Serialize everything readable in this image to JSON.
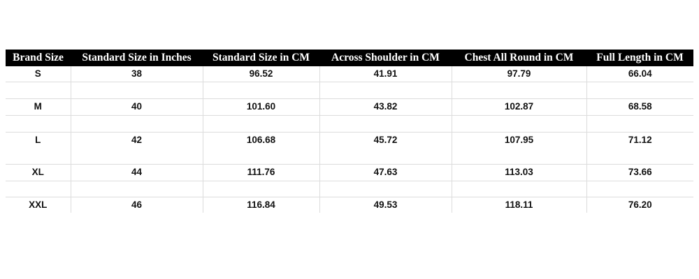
{
  "table": {
    "headers": [
      "Brand Size",
      "Standard Size in Inches",
      "Standard Size in CM",
      "Across Shoulder in CM",
      "Chest All Round in CM",
      "Full Length in CM"
    ],
    "rows": [
      [
        "S",
        "38",
        "96.52",
        "41.91",
        "97.79",
        "66.04"
      ],
      [
        "",
        "",
        "",
        "",
        "",
        ""
      ],
      [
        "M",
        "40",
        "101.60",
        "43.82",
        "102.87",
        "68.58"
      ],
      [
        "",
        "",
        "",
        "",
        "",
        ""
      ],
      [
        "L",
        "42",
        "106.68",
        "45.72",
        "107.95",
        "71.12"
      ],
      [
        "XL",
        "44",
        "111.76",
        "47.63",
        "113.03",
        "73.66"
      ],
      [
        "",
        "",
        "",
        "",
        "",
        ""
      ],
      [
        "XXL",
        "46",
        "116.84",
        "49.53",
        "118.11",
        "76.20"
      ]
    ]
  }
}
